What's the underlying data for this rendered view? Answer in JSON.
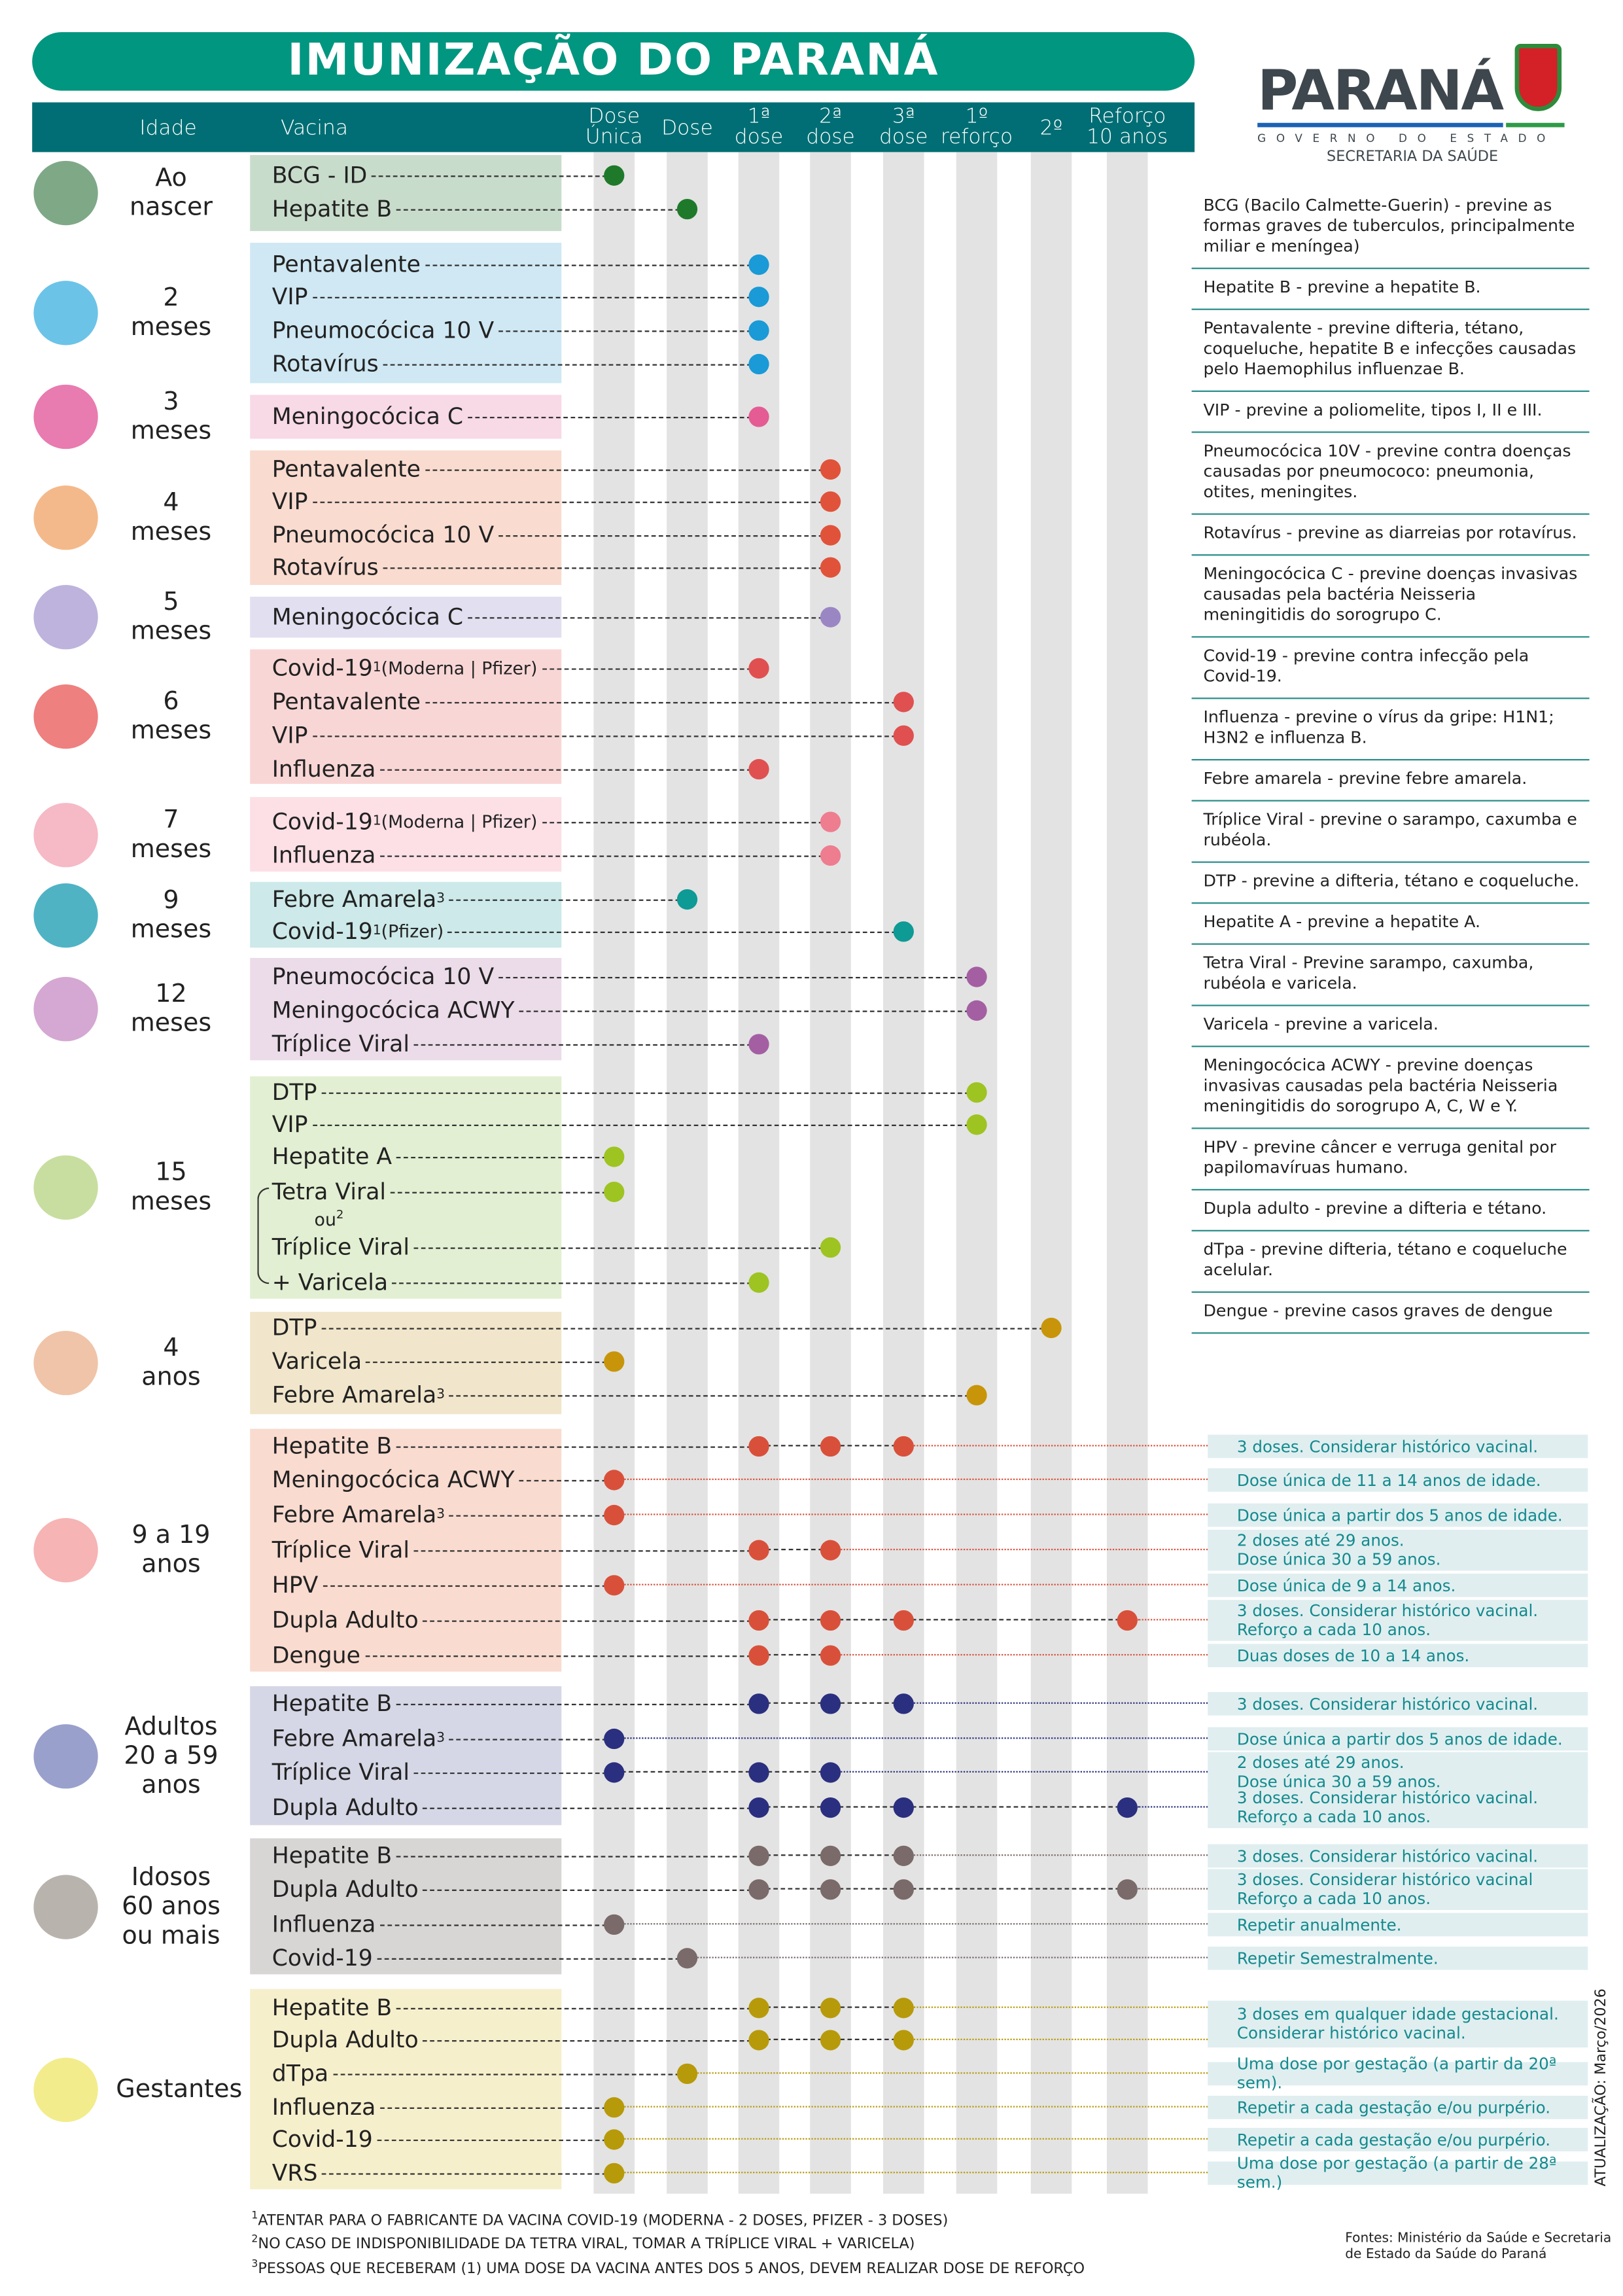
{
  "title": "IMUNIZAÇÃO DO PARANÁ",
  "logo": {
    "name": "PARANÁ",
    "line1": "GOVERNO DO ESTADO",
    "line2": "SECRETARIA DA SAÚDE"
  },
  "header": {
    "idade": "Idade",
    "vacina": "Vacina",
    "columns": [
      "Dose\nÚnica",
      "Dose",
      "1ª\ndose",
      "2ª\ndose",
      "3ª\ndose",
      "1º\nreforço",
      "2º",
      "Reforço\n10 anos"
    ]
  },
  "groups": [
    {
      "age": "Ao\nnascer",
      "icon": "newborn-icon",
      "icon_color": "#7fa887",
      "box": "#c8dccb",
      "dot": "#1e7a2a",
      "rows": [
        {
          "v": "BCG - ID",
          "d": [
            0
          ]
        },
        {
          "v": "Hepatite B",
          "d": [
            1
          ]
        }
      ]
    },
    {
      "age": "2\nmeses",
      "icon": "baby-swaddled-icon",
      "icon_color": "#6cc3e8",
      "box": "#cfe8f3",
      "dot": "#1a9ad6",
      "rows": [
        {
          "v": "Pentavalente",
          "d": [
            2
          ]
        },
        {
          "v": "VIP",
          "d": [
            2
          ]
        },
        {
          "v": "Pneumocócica 10 V",
          "d": [
            2
          ]
        },
        {
          "v": "Rotavírus",
          "d": [
            2
          ]
        }
      ]
    },
    {
      "age": "3\nmeses",
      "icon": "baby-icon",
      "icon_color": "#e87bb0",
      "box": "#f8d9e6",
      "dot": "#e45c93",
      "rows": [
        {
          "v": "Meningocócica C",
          "d": [
            2
          ]
        }
      ]
    },
    {
      "age": "4\nmeses",
      "icon": "baby-icon",
      "icon_color": "#f4b98a",
      "box": "#f9dbd0",
      "dot": "#e0533a",
      "rows": [
        {
          "v": "Pentavalente",
          "d": [
            3
          ]
        },
        {
          "v": "VIP",
          "d": [
            3
          ]
        },
        {
          "v": "Pneumocócica 10 V",
          "d": [
            3
          ]
        },
        {
          "v": "Rotavírus",
          "d": [
            3
          ]
        }
      ]
    },
    {
      "age": "5\nmeses",
      "icon": "baby-icon",
      "icon_color": "#bdb3dc",
      "box": "#e2dff0",
      "dot": "#9b86c4",
      "rows": [
        {
          "v": "Meningocócica C",
          "d": [
            3
          ]
        }
      ]
    },
    {
      "age": "6\nmeses",
      "icon": "baby-sitting-icon",
      "icon_color": "#ee8080",
      "box": "#f9d6d6",
      "dot": "#e05050",
      "rows": [
        {
          "v": "Covid-19",
          "sup": "1",
          "extra": " (Moderna | Pfizer)",
          "d": [
            2
          ]
        },
        {
          "v": "Pentavalente",
          "d": [
            4
          ]
        },
        {
          "v": "VIP",
          "d": [
            4
          ]
        },
        {
          "v": "Influenza",
          "d": [
            2
          ]
        }
      ]
    },
    {
      "age": "7\nmeses",
      "icon": "baby-sitting-icon",
      "icon_color": "#f6b9c6",
      "box": "#fce0e6",
      "dot": "#ee7d8f",
      "rows": [
        {
          "v": "Covid-19",
          "sup": "1",
          "extra": " (Moderna | Pfizer)",
          "d": [
            3
          ]
        },
        {
          "v": "Influenza",
          "d": [
            3
          ]
        }
      ]
    },
    {
      "age": "9\nmeses",
      "icon": "baby-crawling-icon",
      "icon_color": "#4fb3c4",
      "box": "#cde9e9",
      "dot": "#0e9a95",
      "rows": [
        {
          "v": "Febre Amarela",
          "sup": "3",
          "d": [
            1
          ]
        },
        {
          "v": "Covid-19",
          "sup": "1",
          "extra": " (Pfizer)",
          "d": [
            4
          ]
        }
      ]
    },
    {
      "age": "12\nmeses",
      "icon": "toddler-icon",
      "icon_color": "#d4a8d2",
      "box": "#ecdcea",
      "dot": "#a45fa3",
      "rows": [
        {
          "v": "Pneumocócica 10 V",
          "d": [
            5
          ]
        },
        {
          "v": "Meningocócica ACWY",
          "d": [
            5
          ]
        },
        {
          "v": "Tríplice Viral",
          "d": [
            2
          ]
        }
      ]
    },
    {
      "age": "15\nmeses",
      "icon": "toddler-walking-icon",
      "icon_color": "#c8dea0",
      "box": "#e2efd2",
      "dot": "#9dc421",
      "ou": "ou",
      "ou_sup": "2",
      "rows": [
        {
          "v": "DTP",
          "d": [
            5
          ]
        },
        {
          "v": "VIP",
          "d": [
            5
          ]
        },
        {
          "v": "Hepatite A",
          "d": [
            0
          ]
        },
        {
          "v": "Tetra Viral",
          "d": [
            0
          ]
        },
        {
          "v": "Tríplice Viral",
          "d": [
            3
          ]
        },
        {
          "v": "+ Varicela",
          "d": [
            2
          ]
        }
      ]
    },
    {
      "age": "4\nanos",
      "icon": "child-running-icon",
      "icon_color": "#f0c4a8",
      "box": "#f1e6cb",
      "dot": "#c8950a",
      "rows": [
        {
          "v": "DTP",
          "d": [
            6
          ]
        },
        {
          "v": "Varicela",
          "d": [
            0
          ]
        },
        {
          "v": "Febre Amarela",
          "sup": "3",
          "d": [
            5
          ]
        }
      ]
    },
    {
      "age": "9 a 19\nanos",
      "icon": "teen-icon",
      "icon_color": "#f6b4b4",
      "box": "#f9dbd0",
      "dot": "#d9503a",
      "rows": [
        {
          "v": "Hepatite B",
          "d": [
            2,
            3,
            4
          ],
          "note": "3 doses. Considerar histórico vacinal."
        },
        {
          "v": "Meningocócica ACWY",
          "d": [
            0
          ],
          "note": "Dose única de 11 a 14 anos de idade."
        },
        {
          "v": "Febre Amarela",
          "sup": "3",
          "d": [
            0
          ],
          "note": "Dose única a partir dos 5 anos de idade."
        },
        {
          "v": "Tríplice Viral",
          "d": [
            2,
            3
          ],
          "note": "2 doses até 29 anos.\nDose única 30 a 59 anos."
        },
        {
          "v": "HPV",
          "d": [
            0
          ],
          "note": "Dose única de 9 a 14 anos."
        },
        {
          "v": "Dupla Adulto",
          "d": [
            2,
            3,
            4,
            7
          ],
          "note": "3 doses. Considerar histórico vacinal.\nReforço a cada 10 anos."
        },
        {
          "v": "Dengue",
          "d": [
            2,
            3
          ],
          "note": "Duas doses de 10 a 14 anos."
        }
      ]
    },
    {
      "age": "Adultos\n20 a 59\nanos",
      "icon": "adult-icon",
      "icon_color": "#9aa0cc",
      "box": "#d5d7e6",
      "dot": "#2b2f7f",
      "rows": [
        {
          "v": "Hepatite B",
          "d": [
            2,
            3,
            4
          ],
          "note": "3 doses. Considerar histórico vacinal."
        },
        {
          "v": "Febre Amarela",
          "sup": "3",
          "d": [
            0
          ],
          "note": "Dose única a partir dos 5 anos de idade."
        },
        {
          "v": "Tríplice Viral",
          "d": [
            0,
            2,
            3
          ],
          "note": "2 doses até 29 anos.\nDose única 30 a 59 anos."
        },
        {
          "v": "Dupla Adulto",
          "d": [
            2,
            3,
            4,
            7
          ],
          "note": "3 doses. Considerar histórico vacinal.\nReforço a cada 10 anos."
        }
      ]
    },
    {
      "age": "Idosos\n60 anos\nou mais",
      "icon": "elderly-icon",
      "icon_color": "#b9b3ae",
      "box": "#d8d5d5",
      "dot": "#7a6a6a",
      "rows": [
        {
          "v": "Hepatite B",
          "d": [
            2,
            3,
            4
          ],
          "note": "3 doses. Considerar histórico vacinal."
        },
        {
          "v": "Dupla Adulto",
          "d": [
            2,
            3,
            4,
            7
          ],
          "note": "3 doses. Considerar histórico vacinal\nReforço a cada 10 anos."
        },
        {
          "v": "Influenza",
          "d": [
            0
          ],
          "note": "Repetir anualmente."
        },
        {
          "v": "Covid-19",
          "d": [
            1
          ],
          "note": "Repetir Semestralmente."
        }
      ]
    },
    {
      "age": "Gestantes",
      "icon": "pregnant-icon",
      "icon_color": "#f2ec8c",
      "box": "#f6efcc",
      "dot": "#b79a0a",
      "rows": [
        {
          "v": "Hepatite B",
          "d": [
            2,
            3,
            4
          ],
          "note": "3 doses em qualquer idade gestacional.\nConsiderar histórico vacinal.",
          "span": 2
        },
        {
          "v": "Dupla Adulto",
          "d": [
            2,
            3,
            4
          ],
          "noteline": true
        },
        {
          "v": "dTpa",
          "d": [
            1
          ],
          "note": "Uma dose por gestação (a partir da 20ª sem)."
        },
        {
          "v": "Influenza",
          "d": [
            0
          ],
          "note": "Repetir a cada gestação e/ou purpério."
        },
        {
          "v": "Covid-19",
          "d": [
            0
          ],
          "note": "Repetir a cada gestação e/ou purpério."
        },
        {
          "v": "VRS",
          "d": [
            0
          ],
          "note": "Uma dose por gestação (a partir de 28ª sem.)"
        }
      ]
    }
  ],
  "glossary": [
    "BCG (Bacilo Calmette-Guerin) - previne as formas graves de tuberculos, principalmente miliar e meníngea)",
    "Hepatite B - previne a hepatite B.",
    "Pentavalente - previne difteria, tétano, coqueluche, hepatite B e infecções causadas pelo Haemophilus influenzae B.",
    "VIP - previne a poliomelite, tipos I, II e III.",
    "Pneumocócica 10V - previne contra doenças causadas por pneumococo: pneumonia, otites, meningites.",
    "Rotavírus - previne as diarreias por rotavírus.",
    "Meningocócica C - previne doenças invasivas causadas pela bactéria Neisseria meningitidis do sorogrupo C.",
    "Covid-19 - previne contra infecção pela Covid-19.",
    "Influenza - previne o vírus da gripe: H1N1; H3N2 e influenza B.",
    "Febre amarela - previne febre amarela.",
    "Tríplice Viral - previne o sarampo, caxumba e rubéola.",
    "DTP - previne a difteria, tétano e coqueluche.",
    "Hepatite A - previne a hepatite A.",
    "Tetra Viral - Previne sarampo, caxumba, rubéola e varicela.",
    "Varicela - previne a varicela.",
    "Meningocócica ACWY - previne doenças invasivas causadas pela bactéria Neisseria meningitidis do sorogrupo A, C, W e Y.",
    "HPV - previne câncer e verruga genital por papilomavíruas humano.",
    "Dupla adulto - previne a difteria e tétano.",
    "dTpa - previne difteria, tétano e coqueluche acelular.",
    "Dengue - previne casos graves de dengue"
  ],
  "footnotes": [
    {
      "n": "1",
      "t": "ATENTAR PARA O FABRICANTE DA VACINA COVID-19 (MODERNA - 2 DOSES, PFIZER - 3 DOSES)"
    },
    {
      "n": "2",
      "t": "NO CASO DE INDISPONIBILIDADE DA TETRA VIRAL, TOMAR A TRÍPLICE VIRAL + VARICELA)"
    },
    {
      "n": "3",
      "t": "PESSOAS QUE RECEBERAM (1) UMA DOSE DA VACINA ANTES DOS 5 ANOS, DEVEM REALIZAR DOSE DE REFORÇO"
    }
  ],
  "sources": "Fontes: Ministério da Saúde e Secretaria\nde Estado da Saúde do Paraná",
  "updated": "ATUALIZAÇÃO: Março/2026"
}
